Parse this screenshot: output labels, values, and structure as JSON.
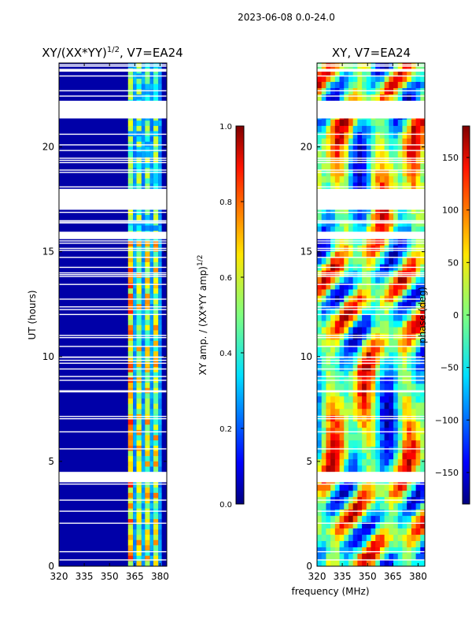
{
  "figure": {
    "suptitle": "2023-06-08 0.0-24.0",
    "xlabel": "frequency (MHz)"
  },
  "chart_data": [
    {
      "type": "heatmap",
      "id": "amp",
      "title": "XY/(XX*YY)^{1/2}, V7=EA24",
      "title_main": "XY/(XX*YY)",
      "title_sup": "1/2",
      "title_tail": ", V7=EA24",
      "xlabel": "frequency (MHz)",
      "ylabel": "UT (hours)",
      "xlim": [
        320,
        384
      ],
      "ylim": [
        0,
        24
      ],
      "xticks": [
        320,
        335,
        350,
        365,
        380
      ],
      "yticks": [
        0,
        5,
        10,
        15,
        20
      ],
      "colormap": "jet",
      "background_value": 0.0,
      "data_band_mhz": [
        360,
        381
      ],
      "band_channels_mhz": [
        [
          361,
          364
        ],
        [
          366,
          369
        ],
        [
          371,
          374
        ],
        [
          376,
          379
        ]
      ],
      "flagged_hours": [
        [
          17.0,
          18.0
        ],
        [
          21.4,
          22.2
        ],
        [
          15.6,
          15.9
        ],
        [
          4.0,
          4.5
        ]
      ],
      "colorbar": {
        "label_main": "XY amp. / (XX*YY amp)",
        "label_sup": "1/2",
        "range": [
          0.0,
          1.0
        ],
        "ticks": [
          "0.0",
          "0.2",
          "0.4",
          "0.6",
          "0.8",
          "1.0"
        ]
      }
    },
    {
      "type": "heatmap",
      "id": "phase",
      "title": "XY, V7=EA24",
      "xlabel": "frequency (MHz)",
      "ylabel": "",
      "xlim": [
        320,
        384
      ],
      "ylim": [
        0,
        24
      ],
      "xticks": [
        320,
        335,
        350,
        365,
        380
      ],
      "yticks": [
        0,
        5,
        10,
        15,
        20
      ],
      "colormap": "jet",
      "flagged_hours": [
        [
          17.0,
          18.0
        ],
        [
          21.4,
          22.2
        ],
        [
          15.6,
          15.9
        ],
        [
          4.0,
          4.5
        ]
      ],
      "colorbar": {
        "label": "phase (deg)",
        "range": [
          -180,
          180
        ],
        "ticks": [
          "−150",
          "−100",
          "−50",
          "0",
          "50",
          "100",
          "150"
        ],
        "tick_values": [
          -150,
          -100,
          -50,
          0,
          50,
          100,
          150
        ]
      }
    }
  ]
}
